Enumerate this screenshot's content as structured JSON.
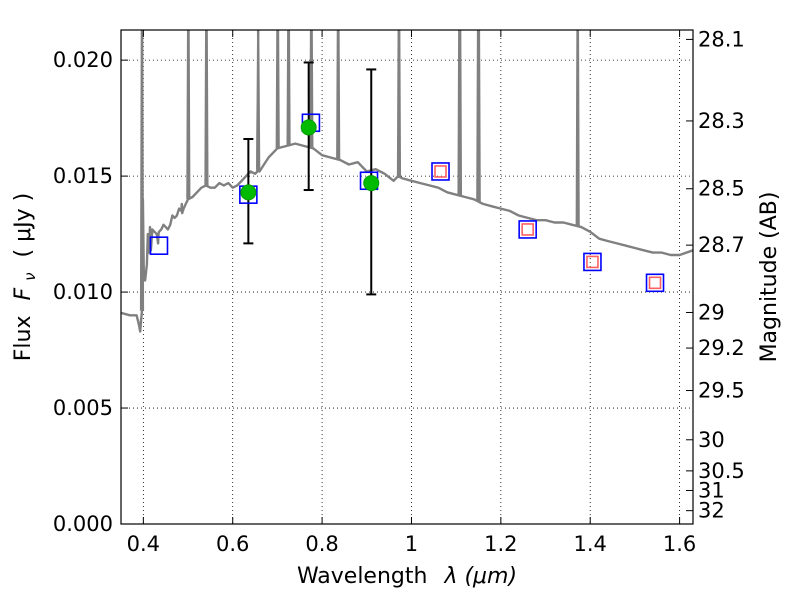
{
  "chart_data": {
    "type": "scatter",
    "xlabel": "Wavelength",
    "xlabel_symbol": "λ (μm)",
    "ylabel": "Flux",
    "ylabel_symbol": "F",
    "ylabel_subscript": "ν",
    "ylabel_unit": "( μJy )",
    "ylabel_right": "Magnitude (AB)",
    "xlim": [
      0.35,
      1.63
    ],
    "ylim": [
      0.0,
      0.0213
    ],
    "grid": true,
    "x_ticks": [
      0.4,
      0.6,
      0.8,
      1.0,
      1.2,
      1.4,
      1.6
    ],
    "x_tick_labels": [
      "0.4",
      "0.6",
      "0.8",
      "1",
      "1.2",
      "1.4",
      "1.6"
    ],
    "y_ticks": [
      0.0,
      0.005,
      0.01,
      0.015,
      0.02
    ],
    "y_tick_labels": [
      "0.000",
      "0.005",
      "0.010",
      "0.015",
      "0.020"
    ],
    "right_ticks": [
      {
        "mag": 28.1,
        "label": "28.1"
      },
      {
        "mag": 28.3,
        "label": "28.3"
      },
      {
        "mag": 28.5,
        "label": "28.5"
      },
      {
        "mag": 28.7,
        "label": "28.7"
      },
      {
        "mag": 29.0,
        "label": "29"
      },
      {
        "mag": 29.2,
        "label": "29.2"
      },
      {
        "mag": 29.5,
        "label": "29.5"
      },
      {
        "mag": 30.0,
        "label": "30"
      },
      {
        "mag": 30.5,
        "label": "30.5"
      },
      {
        "mag": 31.0,
        "label": "31"
      },
      {
        "mag": 32.0,
        "label": "32"
      }
    ],
    "template_spectrum": {
      "color": "#808080",
      "x": [
        0.35,
        0.37,
        0.385,
        0.39,
        0.393,
        0.395,
        0.397,
        0.399,
        0.401,
        0.404,
        0.408,
        0.41,
        0.413,
        0.415,
        0.417,
        0.42,
        0.425,
        0.43,
        0.433,
        0.434,
        0.435,
        0.44,
        0.445,
        0.45,
        0.455,
        0.46,
        0.465,
        0.47,
        0.475,
        0.48,
        0.485,
        0.486,
        0.487,
        0.49,
        0.495,
        0.5,
        0.5,
        0.51,
        0.52,
        0.53,
        0.54,
        0.55,
        0.56,
        0.57,
        0.58,
        0.59,
        0.6,
        0.61,
        0.62,
        0.63,
        0.64,
        0.65,
        0.655,
        0.656,
        0.657,
        0.66,
        0.67,
        0.68,
        0.69,
        0.7,
        0.72,
        0.74,
        0.76,
        0.78,
        0.8,
        0.82,
        0.84,
        0.86,
        0.88,
        0.9,
        0.92,
        0.94,
        0.96,
        0.97,
        0.98,
        1.0,
        1.02,
        1.04,
        1.06,
        1.08,
        1.1,
        1.12,
        1.14,
        1.16,
        1.18,
        1.2,
        1.22,
        1.24,
        1.26,
        1.28,
        1.3,
        1.32,
        1.34,
        1.36,
        1.38,
        1.4,
        1.42,
        1.44,
        1.46,
        1.48,
        1.5,
        1.52,
        1.54,
        1.56,
        1.58,
        1.6,
        1.63
      ],
      "y": [
        0.0091,
        0.009,
        0.009,
        0.0086,
        0.0083,
        0.0088,
        0.0092,
        0.014,
        0.0108,
        0.0105,
        0.0112,
        0.0125,
        0.0117,
        0.0128,
        0.0118,
        0.0127,
        0.0126,
        0.0125,
        0.0121,
        0.0125,
        0.0126,
        0.0127,
        0.0129,
        0.0128,
        0.0127,
        0.0129,
        0.0133,
        0.0132,
        0.0133,
        0.0136,
        0.0135,
        0.0138,
        0.0134,
        0.0136,
        0.0138,
        0.014,
        0.014,
        0.0141,
        0.0143,
        0.0145,
        0.0146,
        0.0145,
        0.0145,
        0.0147,
        0.0146,
        0.0147,
        0.0145,
        0.0146,
        0.0148,
        0.015,
        0.0152,
        0.0151,
        0.0152,
        0.018,
        0.0153,
        0.0152,
        0.0155,
        0.0158,
        0.016,
        0.0162,
        0.0163,
        0.0164,
        0.0163,
        0.0162,
        0.0159,
        0.0158,
        0.0157,
        0.0155,
        0.0156,
        0.0152,
        0.0153,
        0.0151,
        0.0148,
        0.015,
        0.0149,
        0.0148,
        0.0147,
        0.0146,
        0.0145,
        0.0143,
        0.0142,
        0.0141,
        0.014,
        0.0138,
        0.0137,
        0.0136,
        0.0135,
        0.0133,
        0.0132,
        0.0131,
        0.0131,
        0.013,
        0.013,
        0.0129,
        0.0128,
        0.0126,
        0.0123,
        0.0122,
        0.0121,
        0.012,
        0.0119,
        0.0118,
        0.0117,
        0.0117,
        0.0116,
        0.0116,
        0.0118
      ]
    },
    "emission_lines": [
      {
        "x": 0.397,
        "peak": 0.0213,
        "width": 0.004
      },
      {
        "x": 0.5007,
        "peak": 0.0213,
        "width": 0.004
      },
      {
        "x": 0.5412,
        "peak": 0.0213,
        "width": 0.004
      },
      {
        "x": 0.657,
        "peak": 0.0185,
        "width": 0.004
      },
      {
        "x": 0.7007,
        "peak": 0.0213,
        "width": 0.004
      },
      {
        "x": 0.725,
        "peak": 0.0213,
        "width": 0.004
      },
      {
        "x": 0.776,
        "peak": 0.0213,
        "width": 0.004
      },
      {
        "x": 0.836,
        "peak": 0.0213,
        "width": 0.004
      },
      {
        "x": 0.972,
        "peak": 0.0213,
        "width": 0.004
      },
      {
        "x": 1.108,
        "peak": 0.0213,
        "width": 0.005
      },
      {
        "x": 1.15,
        "peak": 0.0213,
        "width": 0.005
      },
      {
        "x": 1.372,
        "peak": 0.0213,
        "width": 0.004
      }
    ],
    "series": [
      {
        "marker": "square",
        "edge": "#0000ff",
        "face": "none",
        "points": [
          {
            "x": 0.435,
            "y": 0.012
          },
          {
            "x": 0.635,
            "y": 0.0142
          },
          {
            "x": 0.775,
            "y": 0.0173
          },
          {
            "x": 0.905,
            "y": 0.0148
          },
          {
            "x": 1.065,
            "y": 0.0152
          },
          {
            "x": 1.26,
            "y": 0.0127
          },
          {
            "x": 1.405,
            "y": 0.0113
          },
          {
            "x": 1.545,
            "y": 0.0104
          }
        ]
      },
      {
        "marker": "square",
        "edge": "#ff6060",
        "face": "none",
        "points": [
          {
            "x": 1.065,
            "y": 0.0152
          },
          {
            "x": 1.26,
            "y": 0.0127
          },
          {
            "x": 1.405,
            "y": 0.0113
          },
          {
            "x": 1.545,
            "y": 0.0104
          }
        ]
      },
      {
        "marker": "circle",
        "edge": "#00a000",
        "face": "#00bb00",
        "points": [
          {
            "x": 0.635,
            "y": 0.0143,
            "yerr_low": 0.0121,
            "yerr_high": 0.0166
          },
          {
            "x": 0.77,
            "y": 0.0171,
            "yerr_low": 0.0144,
            "yerr_high": 0.0199
          },
          {
            "x": 0.91,
            "y": 0.0147,
            "yerr_low": 0.0099,
            "yerr_high": 0.0196
          }
        ]
      }
    ]
  }
}
